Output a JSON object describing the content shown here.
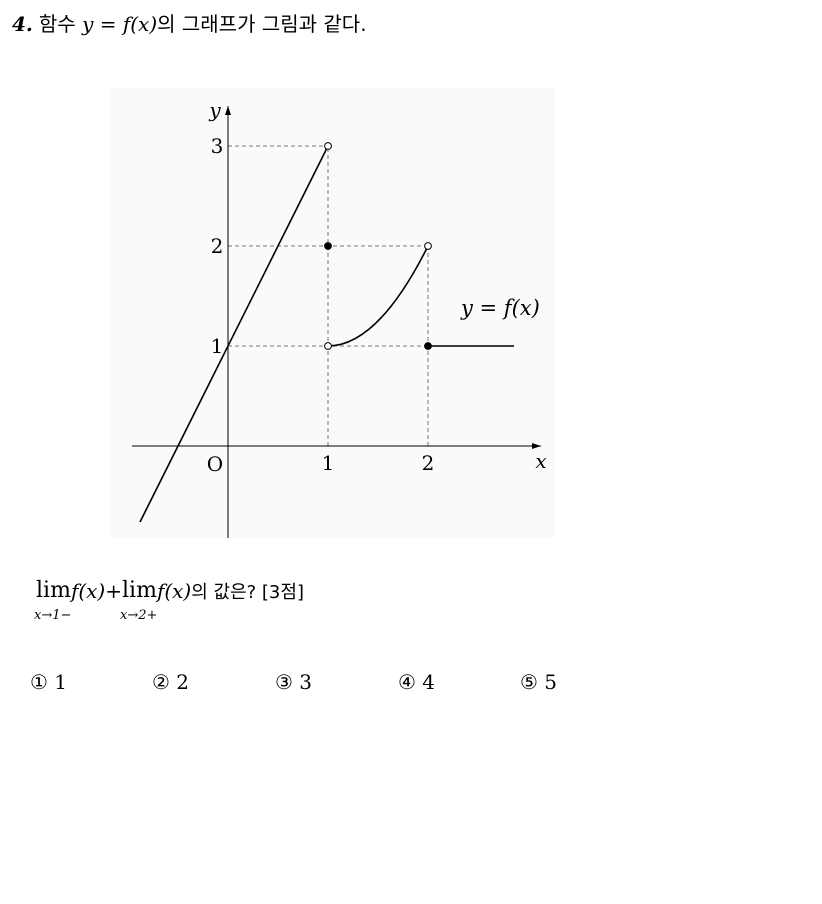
{
  "question": {
    "number": "4.",
    "text_prefix": "함수 ",
    "function": "y = f(x)",
    "text_suffix": "의 그래프가 그림과 같다."
  },
  "chart_data": {
    "type": "line",
    "title": "",
    "xlabel": "x",
    "ylabel": "y",
    "origin_label": "O",
    "xlim": [
      -0.88,
      2.95
    ],
    "ylim": [
      -0.88,
      3.5
    ],
    "x_ticks": [
      {
        "value": 1,
        "label": "1"
      },
      {
        "value": 2,
        "label": "2"
      }
    ],
    "y_ticks": [
      {
        "value": 1,
        "label": "1"
      },
      {
        "value": 2,
        "label": "2"
      },
      {
        "value": 3,
        "label": "3"
      }
    ],
    "series": [
      {
        "shape": "line",
        "x": [
          -0.88,
          1
        ],
        "y": [
          -0.76,
          3
        ]
      },
      {
        "shape": "curve",
        "x": [
          1,
          1.25,
          1.5,
          1.75,
          2
        ],
        "y": [
          1,
          1.0625,
          1.25,
          1.5625,
          2
        ]
      },
      {
        "shape": "line",
        "x": [
          2,
          2.86
        ],
        "y": [
          1,
          1
        ]
      }
    ],
    "points": [
      {
        "x": 1,
        "y": 3,
        "filled": false
      },
      {
        "x": 1,
        "y": 2,
        "filled": true
      },
      {
        "x": 1,
        "y": 1,
        "filled": false
      },
      {
        "x": 2,
        "y": 2,
        "filled": false
      },
      {
        "x": 2,
        "y": 1,
        "filled": true
      }
    ],
    "dashed_guides": [
      {
        "x1": 0,
        "y1": 3,
        "x2": 1,
        "y2": 3
      },
      {
        "x1": 0,
        "y1": 2,
        "x2": 2,
        "y2": 2
      },
      {
        "x1": 0,
        "y1": 1,
        "x2": 2,
        "y2": 1
      },
      {
        "x1": 1,
        "y1": 0,
        "x2": 1,
        "y2": 3
      },
      {
        "x1": 2,
        "y1": 0,
        "x2": 2,
        "y2": 2
      }
    ],
    "annotation": {
      "text": "y = f(x)",
      "x": 2.35,
      "y": 1.38
    }
  },
  "limits": {
    "lim_word": "lim",
    "sub1": "x→1−",
    "sub2": "x→2+",
    "func": "f(x)",
    "plus": "+",
    "suffix": "의 값은? [3점]"
  },
  "choices": [
    {
      "label": "① 1"
    },
    {
      "label": "② 2"
    },
    {
      "label": "③ 3"
    },
    {
      "label": "④ 4"
    },
    {
      "label": "⑤ 5"
    }
  ]
}
